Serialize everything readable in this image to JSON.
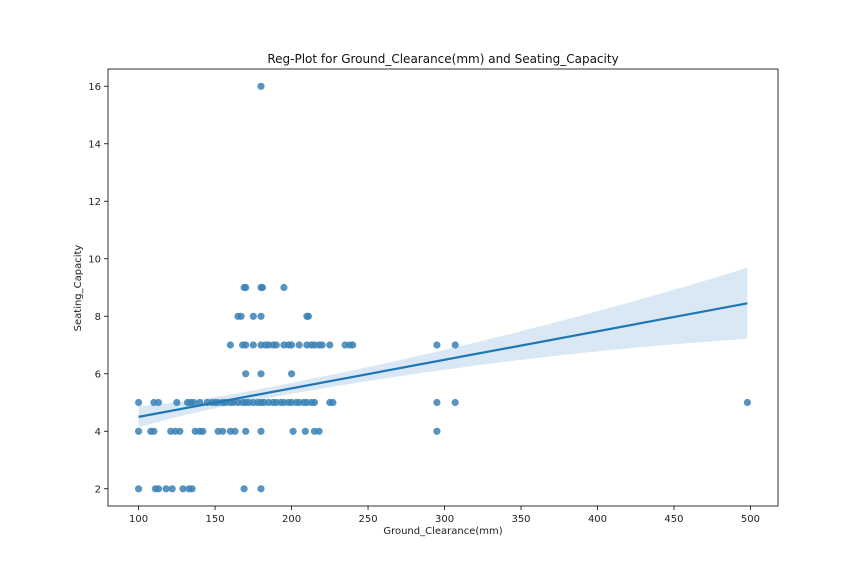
{
  "chart_data": {
    "type": "scatter",
    "title": "Reg-Plot for Ground_Clearance(mm) and Seating_Capacity",
    "xlabel": "Ground_Clearance(mm)",
    "ylabel": "Seating_Capacity",
    "xlim": [
      80,
      518
    ],
    "ylim": [
      1.4,
      16.6
    ],
    "xticks": [
      100,
      150,
      200,
      250,
      300,
      350,
      400,
      450,
      500
    ],
    "yticks": [
      2,
      4,
      6,
      8,
      10,
      12,
      14,
      16
    ],
    "grid": false,
    "colors": {
      "points": "#3a81b5",
      "line": "#1f77b4",
      "band": "#c6dbef"
    },
    "points": [
      [
        180,
        16
      ],
      [
        170,
        9
      ],
      [
        180,
        9
      ],
      [
        195,
        9
      ],
      [
        169,
        9
      ],
      [
        181,
        9
      ],
      [
        165,
        8
      ],
      [
        167,
        8
      ],
      [
        175,
        8
      ],
      [
        180,
        8
      ],
      [
        210,
        8
      ],
      [
        211,
        8
      ],
      [
        160,
        7
      ],
      [
        168,
        7
      ],
      [
        170,
        7
      ],
      [
        175,
        7
      ],
      [
        180,
        7
      ],
      [
        183,
        7
      ],
      [
        185,
        7
      ],
      [
        188,
        7
      ],
      [
        190,
        7
      ],
      [
        195,
        7
      ],
      [
        198,
        7
      ],
      [
        200,
        7
      ],
      [
        205,
        7
      ],
      [
        210,
        7
      ],
      [
        213,
        7
      ],
      [
        215,
        7
      ],
      [
        218,
        7
      ],
      [
        220,
        7
      ],
      [
        225,
        7
      ],
      [
        235,
        7
      ],
      [
        238,
        7
      ],
      [
        240,
        7
      ],
      [
        295,
        7
      ],
      [
        307,
        7
      ],
      [
        170,
        6
      ],
      [
        180,
        6
      ],
      [
        200,
        6
      ],
      [
        100,
        5
      ],
      [
        110,
        5
      ],
      [
        113,
        5
      ],
      [
        125,
        5
      ],
      [
        132,
        5
      ],
      [
        134,
        5
      ],
      [
        136,
        5
      ],
      [
        140,
        5
      ],
      [
        145,
        5
      ],
      [
        148,
        5
      ],
      [
        150,
        5
      ],
      [
        152,
        5
      ],
      [
        155,
        5
      ],
      [
        157,
        5
      ],
      [
        160,
        5
      ],
      [
        162,
        5
      ],
      [
        165,
        5
      ],
      [
        168,
        5
      ],
      [
        170,
        5
      ],
      [
        172,
        5
      ],
      [
        175,
        5
      ],
      [
        178,
        5
      ],
      [
        180,
        5
      ],
      [
        182,
        5
      ],
      [
        185,
        5
      ],
      [
        188,
        5
      ],
      [
        190,
        5
      ],
      [
        193,
        5
      ],
      [
        195,
        5
      ],
      [
        198,
        5
      ],
      [
        200,
        5
      ],
      [
        203,
        5
      ],
      [
        205,
        5
      ],
      [
        208,
        5
      ],
      [
        210,
        5
      ],
      [
        213,
        5
      ],
      [
        215,
        5
      ],
      [
        225,
        5
      ],
      [
        227,
        5
      ],
      [
        295,
        5
      ],
      [
        307,
        5
      ],
      [
        498,
        5
      ],
      [
        100,
        4
      ],
      [
        108,
        4
      ],
      [
        110,
        4
      ],
      [
        121,
        4
      ],
      [
        124,
        4
      ],
      [
        127,
        4
      ],
      [
        137,
        4
      ],
      [
        140,
        4
      ],
      [
        142,
        4
      ],
      [
        152,
        4
      ],
      [
        155,
        4
      ],
      [
        160,
        4
      ],
      [
        163,
        4
      ],
      [
        170,
        4
      ],
      [
        180,
        4
      ],
      [
        201,
        4
      ],
      [
        209,
        4
      ],
      [
        215,
        4
      ],
      [
        218,
        4
      ],
      [
        295,
        4
      ],
      [
        100,
        2
      ],
      [
        111,
        2
      ],
      [
        113,
        2
      ],
      [
        118,
        2
      ],
      [
        122,
        2
      ],
      [
        129,
        2
      ],
      [
        133,
        2
      ],
      [
        135,
        2
      ],
      [
        169,
        2
      ],
      [
        180,
        2
      ]
    ],
    "regression": {
      "x": [
        100,
        498
      ],
      "y": [
        4.5,
        8.45
      ],
      "ci_lower": [
        4.12,
        7.35
      ],
      "ci_upper": [
        4.85,
        9.82
      ],
      "ci_min_at_x": 170
    }
  }
}
